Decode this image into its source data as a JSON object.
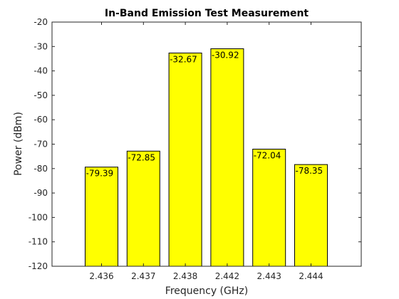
{
  "chart_data": {
    "type": "bar",
    "title": "In-Band Emission Test Measurement",
    "xlabel": "Frequency (GHz)",
    "ylabel": "Power (dBm)",
    "categories": [
      "2.436",
      "2.437",
      "2.438",
      "2.442",
      "2.443",
      "2.444"
    ],
    "values": [
      -79.39,
      -72.85,
      -32.67,
      -30.92,
      -72.04,
      -78.35
    ],
    "data_labels": [
      "-79.39",
      "-72.85",
      "-32.67",
      "-30.92",
      "-72.04",
      "-78.35"
    ],
    "ylim": [
      -120,
      -20
    ],
    "yticks": [
      "-20",
      "-30",
      "-40",
      "-50",
      "-60",
      "-70",
      "-80",
      "-90",
      "-100",
      "-110",
      "-120"
    ],
    "ytick_values": [
      -20,
      -30,
      -40,
      -50,
      -60,
      -70,
      -80,
      -90,
      -100,
      -110,
      -120
    ],
    "bar_color": "#ffff00",
    "edge_color": "#000000",
    "grid": false,
    "legend": "none"
  }
}
